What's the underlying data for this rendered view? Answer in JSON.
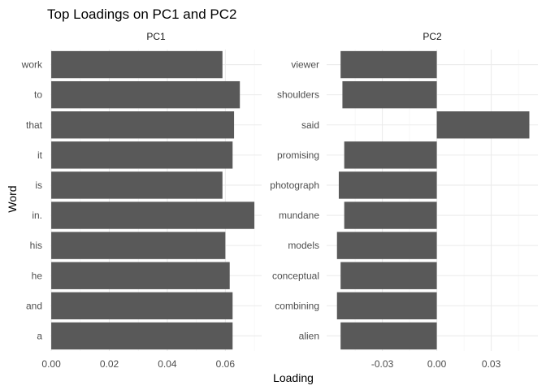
{
  "chart_data": {
    "type": "bar",
    "orientation": "horizontal",
    "title": "Top Loadings on PC1 and PC2",
    "xlabel": "Loading",
    "ylabel": "Word",
    "grid": true,
    "bar_color": "#595959",
    "panels": [
      {
        "name": "PC1",
        "categories": [
          "work",
          "to",
          "that",
          "it",
          "is",
          "in.",
          "his",
          "he",
          "and",
          "a"
        ],
        "values": [
          0.059,
          0.065,
          0.063,
          0.0625,
          0.059,
          0.07,
          0.06,
          0.0615,
          0.0625,
          0.0625
        ],
        "xlim": [
          -0.0003,
          0.0725
        ],
        "xticks": [
          0.0,
          0.02,
          0.04,
          0.06
        ],
        "xtick_labels": [
          "0.00",
          "0.02",
          "0.04",
          "0.06"
        ]
      },
      {
        "name": "PC2",
        "categories": [
          "viewer",
          "shoulders",
          "said",
          "promising",
          "photograph",
          "mundane",
          "models",
          "conceptual",
          "combining",
          "alien"
        ],
        "values": [
          -0.053,
          -0.052,
          0.051,
          -0.051,
          -0.054,
          -0.051,
          -0.055,
          -0.053,
          -0.055,
          -0.053
        ],
        "xlim": [
          -0.0607,
          0.0557
        ],
        "xticks": [
          -0.03,
          0.0,
          0.03
        ],
        "xtick_labels": [
          "-0.03",
          "0.00",
          "0.03"
        ]
      }
    ]
  }
}
